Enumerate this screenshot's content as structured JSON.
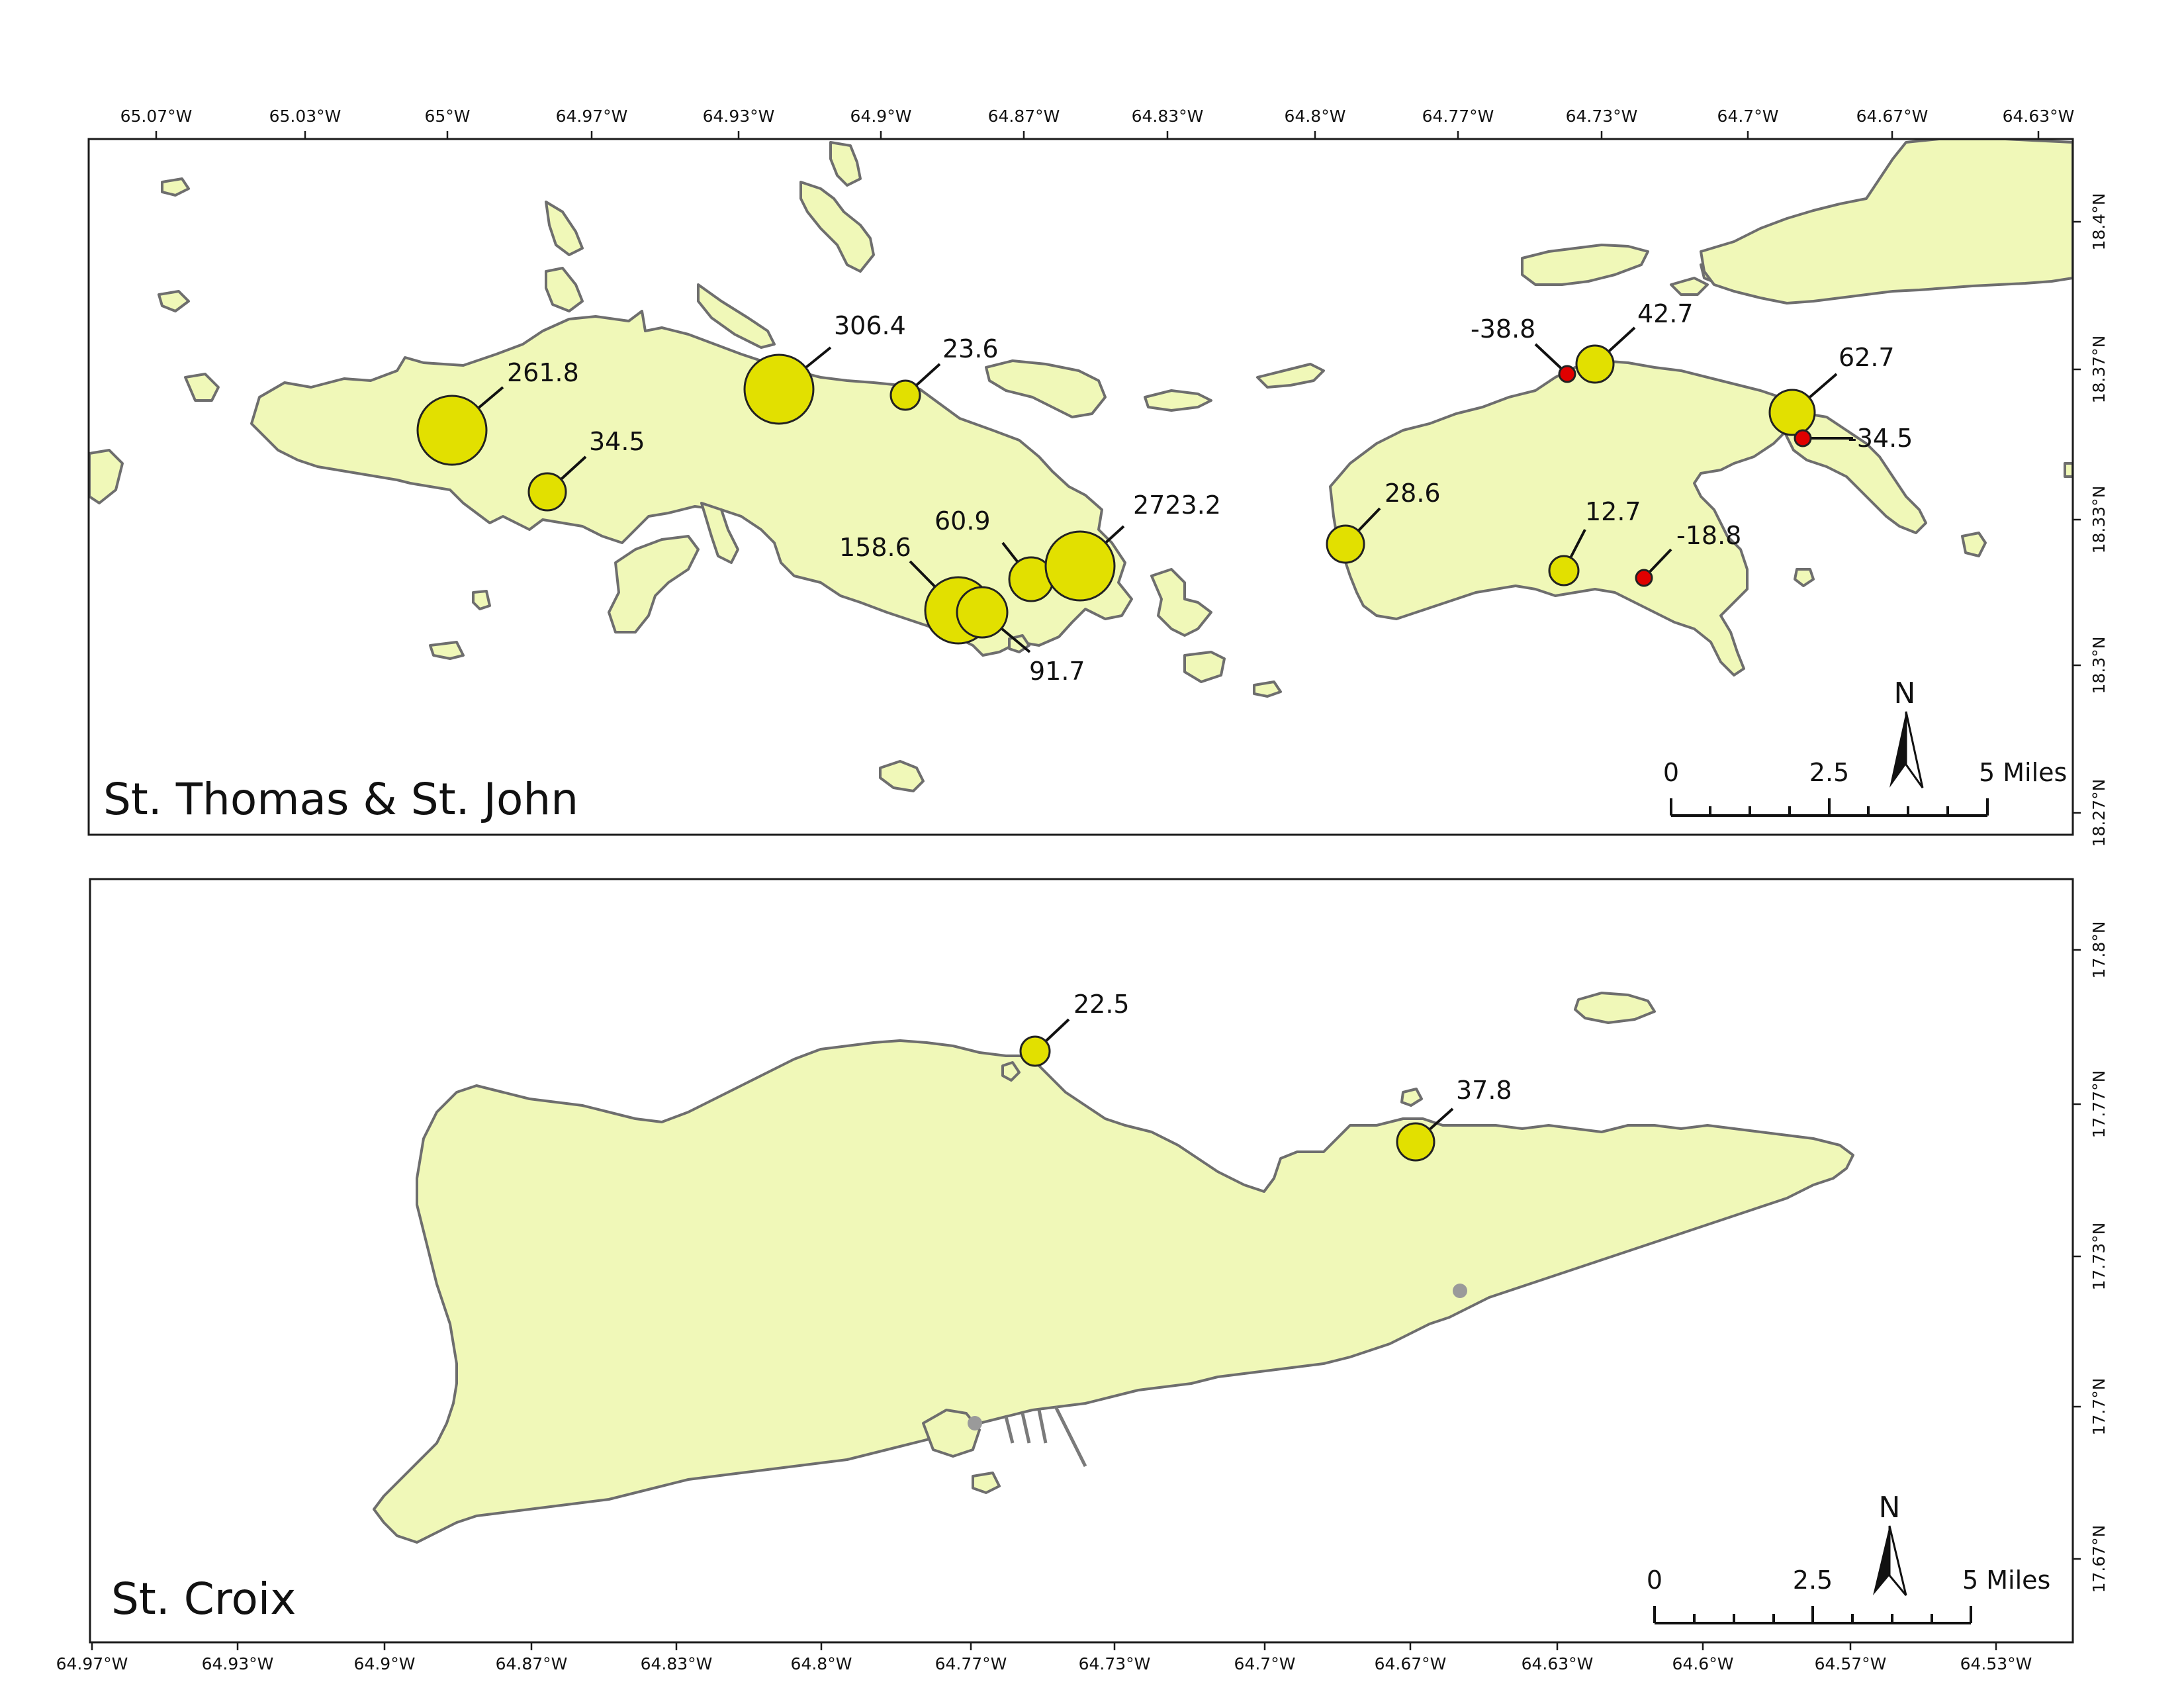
{
  "panels": [
    {
      "title": "St. Thomas & St. John",
      "lon_ticks": [
        "65.07°W",
        "65.03°W",
        "65°W",
        "64.97°W",
        "64.93°W",
        "64.9°W",
        "64.87°W",
        "64.83°W",
        "64.8°W",
        "64.77°W",
        "64.73°W",
        "64.7°W",
        "64.67°W",
        "64.63°W"
      ],
      "lat_ticks": [
        "18.4°N",
        "18.37°N",
        "18.33°N",
        "18.3°N",
        "18.27°N"
      ],
      "points": [
        {
          "label": "261.8",
          "value": 261.8
        },
        {
          "label": "34.5",
          "value": 34.5
        },
        {
          "label": "306.4",
          "value": 306.4
        },
        {
          "label": "23.6",
          "value": 23.6
        },
        {
          "label": "158.6",
          "value": 158.6
        },
        {
          "label": "60.9",
          "value": 60.9
        },
        {
          "label": "2723.2",
          "value": 2723.2
        },
        {
          "label": "91.7",
          "value": 91.7
        },
        {
          "label": "28.6",
          "value": 28.6
        },
        {
          "label": "-38.8",
          "value": -38.8
        },
        {
          "label": "42.7",
          "value": 42.7
        },
        {
          "label": "12.7",
          "value": 12.7
        },
        {
          "label": "-18.8",
          "value": -18.8
        },
        {
          "label": "62.7",
          "value": 62.7
        },
        {
          "label": "-34.5",
          "value": -34.5
        }
      ],
      "scale_bar": {
        "labels": [
          "0",
          "2.5",
          "5 Miles"
        ]
      },
      "north_arrow": {
        "label": "N",
        "icon": "north-arrow-icon"
      }
    },
    {
      "title": "St. Croix",
      "lon_ticks": [
        "64.97°W",
        "64.93°W",
        "64.9°W",
        "64.87°W",
        "64.83°W",
        "64.8°W",
        "64.77°W",
        "64.73°W",
        "64.7°W",
        "64.67°W",
        "64.63°W",
        "64.6°W",
        "64.57°W",
        "64.53°W"
      ],
      "lat_ticks": [
        "17.8°N",
        "17.77°N",
        "17.73°N",
        "17.7°N",
        "17.67°N"
      ],
      "points": [
        {
          "label": "22.5",
          "value": 22.5
        },
        {
          "label": "37.8",
          "value": 37.8
        }
      ],
      "scale_bar": {
        "labels": [
          "0",
          "2.5",
          "5 Miles"
        ]
      },
      "north_arrow": {
        "label": "N",
        "icon": "north-arrow-icon"
      }
    }
  ],
  "colors": {
    "land": "#f0f8b8",
    "coastline": "#6e6e6e",
    "positive_symbol": "#e2e000",
    "negative_symbol": "#e00000",
    "other_point": "#9a9a9a"
  }
}
